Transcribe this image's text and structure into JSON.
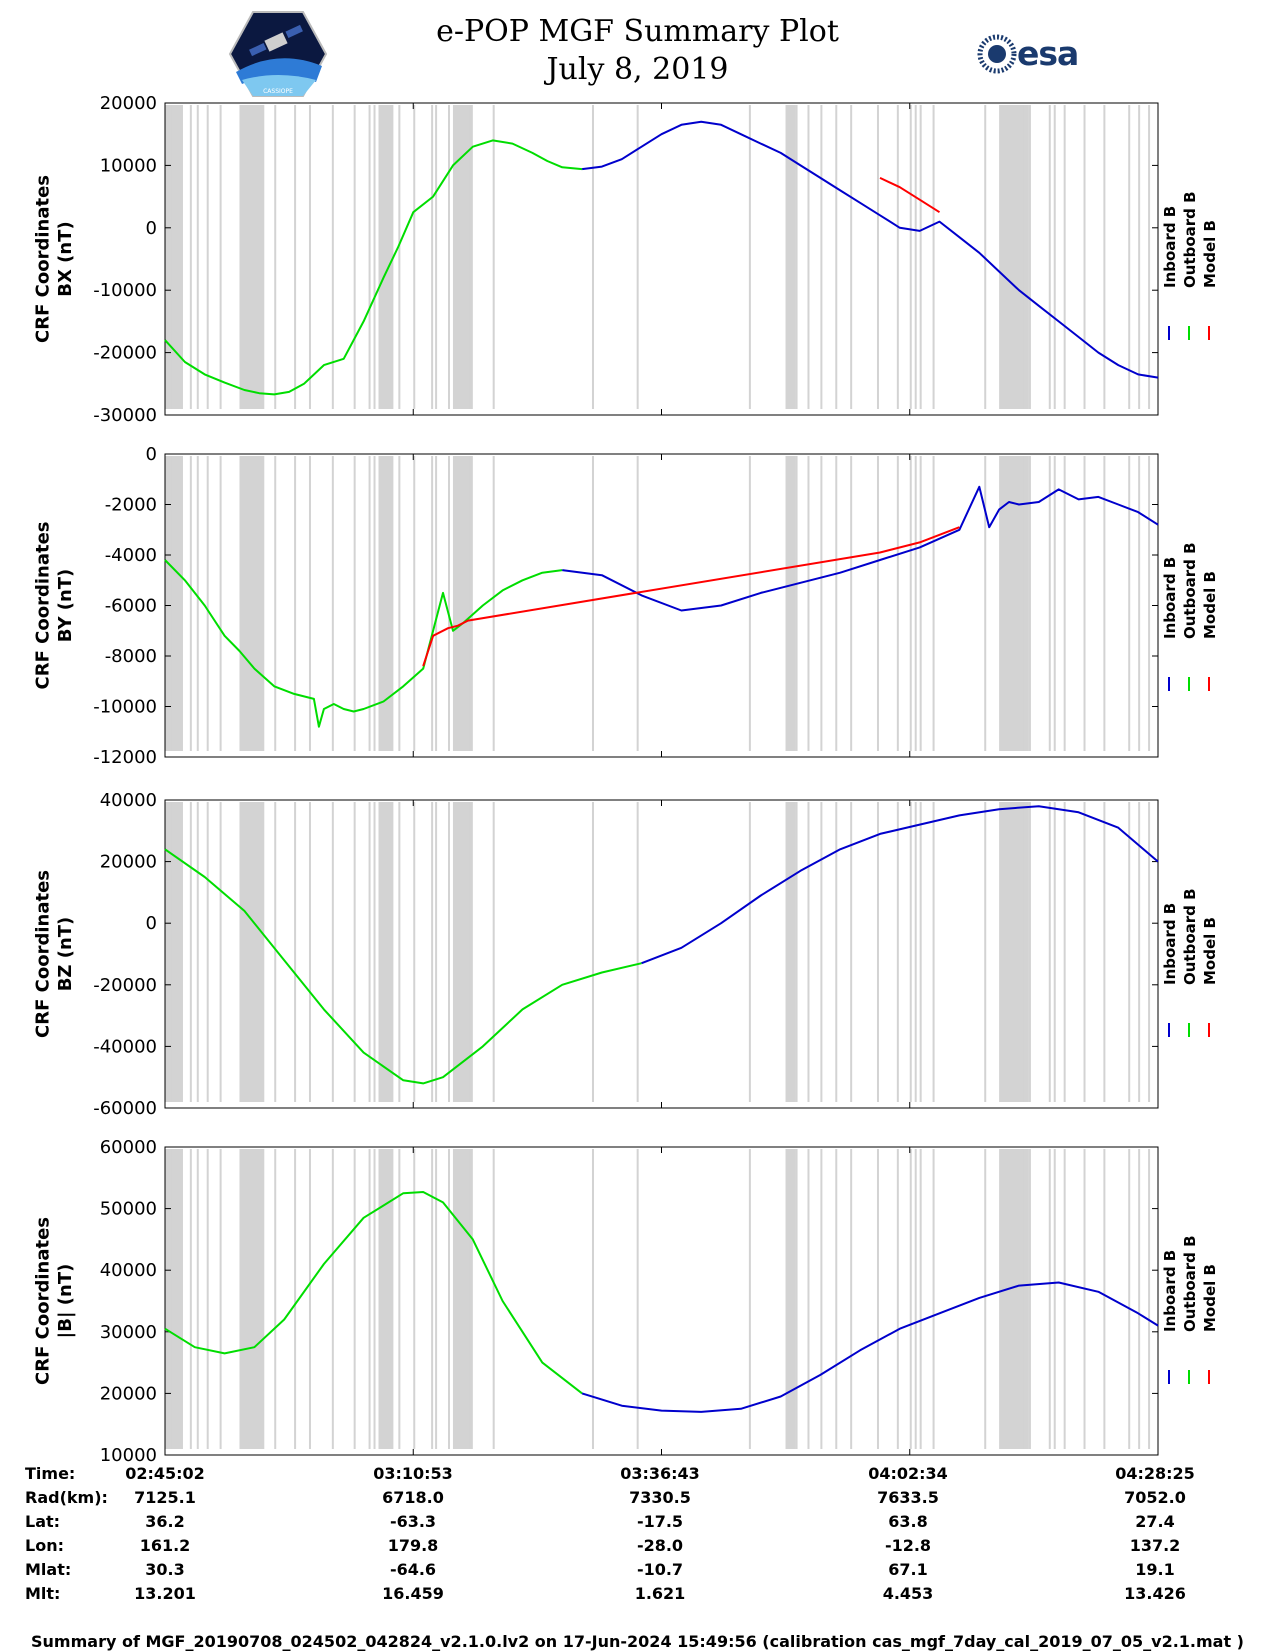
{
  "header": {
    "title_line1": "e-POP MGF Summary Plot",
    "title_line2": "July 8, 2019",
    "esa_logo_text": "esa"
  },
  "logos": {
    "left": "e-POP satellite mission logo",
    "left_caption": "CASSIOPE",
    "right": "esa"
  },
  "colors": {
    "inboard": "#0000cc",
    "outboard": "#00dd00",
    "model": "#ff0000",
    "shade": "#d3d3d3",
    "esa": "#1a3a6e"
  },
  "chart_data": [
    {
      "type": "line",
      "name": "BX",
      "ylabel_line1": "CRF Coordinates",
      "ylabel_line2": "BX (nT)",
      "ylim": [
        -30000,
        20000
      ],
      "yticks": [
        20000,
        10000,
        0,
        -10000,
        -20000,
        -30000
      ],
      "ytick_labels": [
        "20000",
        "10000",
        "0",
        "-10000",
        "-20000",
        "-30000"
      ],
      "series": [
        {
          "name": "Outboard B",
          "color_key": "outboard",
          "x": [
            0,
            2,
            4,
            6,
            8,
            9.5,
            11,
            12.5,
            14,
            16,
            18,
            20,
            22,
            23.5,
            25,
            27,
            29,
            31,
            33,
            35,
            37,
            38.5,
            40,
            42
          ],
          "y": [
            -18000,
            -21500,
            -23500,
            -24800,
            -26000,
            -26500,
            -26700,
            -26300,
            -25000,
            -22000,
            -21000,
            -15000,
            -8000,
            -3000,
            2500,
            5000,
            10000,
            13000,
            14000,
            13500,
            12000,
            10700,
            9700,
            9400
          ]
        },
        {
          "name": "Inboard B",
          "color_key": "inboard",
          "x": [
            42,
            44,
            46,
            48,
            50,
            52,
            54,
            56,
            58,
            60,
            62,
            64,
            66,
            68,
            70,
            72,
            74,
            76,
            78,
            80,
            82,
            84,
            86,
            88,
            90,
            92,
            94,
            96,
            98,
            100
          ],
          "y": [
            9400,
            9800,
            11000,
            13000,
            15000,
            16500,
            17000,
            16500,
            15000,
            13500,
            12000,
            10000,
            8000,
            6000,
            4000,
            2000,
            0,
            -500,
            1000,
            -1500,
            -4000,
            -7000,
            -10000,
            -12500,
            -15000,
            -17500,
            -20000,
            -22000,
            -23500,
            -24000
          ]
        },
        {
          "name": "Model B",
          "color_key": "model",
          "x": [
            72,
            74,
            76,
            78
          ],
          "y": [
            8000,
            6500,
            4500,
            2500
          ]
        }
      ]
    },
    {
      "type": "line",
      "name": "BY",
      "ylabel_line1": "CRF Coordinates",
      "ylabel_line2": "BY (nT)",
      "ylim": [
        -12000,
        0
      ],
      "yticks": [
        0,
        -2000,
        -4000,
        -6000,
        -8000,
        -10000,
        -12000
      ],
      "ytick_labels": [
        "0",
        "-2000",
        "-4000",
        "-6000",
        "-8000",
        "-10000",
        "-12000"
      ],
      "series": [
        {
          "name": "Outboard B",
          "color_key": "outboard",
          "x": [
            0,
            2,
            4,
            6,
            7.5,
            9,
            11,
            13,
            15,
            15.5,
            16,
            17,
            18,
            19,
            20,
            22,
            24,
            26,
            27,
            28,
            29,
            30,
            32,
            34,
            36,
            38,
            40
          ],
          "y": [
            -4200,
            -5000,
            -6000,
            -7200,
            -7800,
            -8500,
            -9200,
            -9500,
            -9700,
            -10800,
            -10100,
            -9900,
            -10100,
            -10200,
            -10100,
            -9800,
            -9200,
            -8500,
            -7000,
            -5500,
            -7000,
            -6700,
            -6000,
            -5400,
            -5000,
            -4700,
            -4600
          ]
        },
        {
          "name": "Inboard B",
          "color_key": "inboard",
          "x": [
            40,
            44,
            48,
            52,
            56,
            60,
            64,
            68,
            72,
            76,
            80,
            82,
            83,
            84,
            85,
            86,
            88,
            90,
            92,
            94,
            96,
            98,
            100
          ],
          "y": [
            -4600,
            -4800,
            -5600,
            -6200,
            -6000,
            -5500,
            -5100,
            -4700,
            -4200,
            -3700,
            -3000,
            -1300,
            -2900,
            -2200,
            -1900,
            -2000,
            -1900,
            -1400,
            -1800,
            -1700,
            -2000,
            -2300,
            -2800
          ]
        },
        {
          "name": "Model B",
          "color_key": "model",
          "x": [
            26,
            27,
            28.5,
            29.5,
            30.5,
            72,
            76,
            80
          ],
          "y": [
            -8400,
            -7200,
            -6900,
            -6800,
            -6600,
            -3900,
            -3500,
            -2900
          ]
        }
      ]
    },
    {
      "type": "line",
      "name": "BZ",
      "ylabel_line1": "CRF Coordinates",
      "ylabel_line2": "BZ (nT)",
      "ylim": [
        -60000,
        40000
      ],
      "yticks": [
        40000,
        20000,
        0,
        -20000,
        -40000,
        -60000
      ],
      "ytick_labels": [
        "40000",
        "20000",
        "0",
        "-20000",
        "-40000",
        "-60000"
      ],
      "series": [
        {
          "name": "Outboard B",
          "color_key": "outboard",
          "x": [
            0,
            4,
            8,
            12,
            16,
            20,
            24,
            26,
            28,
            32,
            36,
            40,
            44,
            48
          ],
          "y": [
            24000,
            15000,
            4000,
            -12000,
            -28000,
            -42000,
            -51000,
            -52000,
            -50000,
            -40000,
            -28000,
            -20000,
            -16000,
            -13000
          ]
        },
        {
          "name": "Inboard B",
          "color_key": "inboard",
          "x": [
            48,
            52,
            56,
            60,
            64,
            68,
            72,
            76,
            80,
            84,
            88,
            92,
            96,
            100
          ],
          "y": [
            -13000,
            -8000,
            0,
            9000,
            17000,
            24000,
            29000,
            32000,
            35000,
            37000,
            38000,
            36000,
            31000,
            20000
          ]
        },
        {
          "name": "Model B",
          "color_key": "model",
          "x": [],
          "y": []
        }
      ]
    },
    {
      "type": "line",
      "name": "|B|",
      "ylabel_line1": "CRF Coordinates",
      "ylabel_line2": "|B| (nT)",
      "ylim": [
        10000,
        60000
      ],
      "yticks": [
        60000,
        50000,
        40000,
        30000,
        20000,
        10000
      ],
      "ytick_labels": [
        "60000",
        "50000",
        "40000",
        "30000",
        "20000",
        "10000"
      ],
      "series": [
        {
          "name": "Outboard B",
          "color_key": "outboard",
          "x": [
            0,
            3,
            6,
            9,
            12,
            16,
            20,
            24,
            26,
            28,
            31,
            34,
            38,
            42
          ],
          "y": [
            30500,
            27500,
            26500,
            27500,
            32000,
            41000,
            48500,
            52500,
            52700,
            51000,
            45000,
            35000,
            25000,
            20000
          ]
        },
        {
          "name": "Inboard B",
          "color_key": "inboard",
          "x": [
            42,
            46,
            50,
            54,
            58,
            62,
            66,
            70,
            74,
            78,
            82,
            86,
            90,
            94,
            98,
            100
          ],
          "y": [
            20000,
            18000,
            17200,
            17000,
            17500,
            19500,
            23000,
            27000,
            30500,
            33000,
            35500,
            37500,
            38000,
            36500,
            33000,
            31000
          ]
        },
        {
          "name": "Model B",
          "color_key": "model",
          "x": [],
          "y": []
        }
      ]
    }
  ],
  "legend": [
    "Inboard B",
    "Outboard B",
    "Model B"
  ],
  "shading_x": [
    0,
    0.5,
    1,
    1.6,
    2.5,
    3.2,
    4.2,
    5.5,
    7.6,
    8.2,
    8.8,
    9.5,
    11,
    13,
    14.5,
    16.8,
    19,
    20.5,
    21,
    21.5,
    22.6,
    23.5,
    25,
    26.8,
    27.2,
    28.5,
    29,
    29.5,
    30.5,
    33,
    43,
    47.5,
    58.8,
    62.5,
    63.5,
    64.7,
    66,
    67.5,
    69,
    71.7,
    73.7,
    75,
    75.5,
    76,
    77.3,
    82.5,
    84.5,
    85,
    85.7,
    86.5,
    87,
    89,
    89.5,
    90.5,
    92.5,
    94.5,
    97,
    98,
    99
  ],
  "shading_bands": [
    [
      0,
      1.8
    ],
    [
      7.5,
      10
    ],
    [
      21.5,
      23
    ],
    [
      29,
      31
    ],
    [
      62.5,
      63.5
    ],
    [
      84,
      87
    ]
  ],
  "xaxis": {
    "labels": [
      "Time:",
      "Rad(km):",
      "Lat:",
      "Lon:",
      "Mlat:",
      "Mlt:"
    ],
    "columns": [
      {
        "time": "02:45:02",
        "rad": "7125.1",
        "lat": "36.2",
        "lon": "161.2",
        "mlat": "30.3",
        "mlt": "13.201"
      },
      {
        "time": "03:10:53",
        "rad": "6718.0",
        "lat": "-63.3",
        "lon": "179.8",
        "mlat": "-64.6",
        "mlt": "16.459"
      },
      {
        "time": "03:36:43",
        "rad": "7330.5",
        "lat": "-17.5",
        "lon": "-28.0",
        "mlat": "-10.7",
        "mlt": "1.621"
      },
      {
        "time": "04:02:34",
        "rad": "7633.5",
        "lat": "63.8",
        "lon": "-12.8",
        "mlat": "67.1",
        "mlt": "4.453"
      },
      {
        "time": "04:28:25",
        "rad": "7052.0",
        "lat": "27.4",
        "lon": "137.2",
        "mlat": "19.1",
        "mlt": "13.426"
      }
    ],
    "tick_positions": [
      0,
      25,
      50,
      75,
      100
    ]
  },
  "footer": "Summary of MGF_20190708_024502_042824_v2.1.0.lv2 on 17-Jun-2024 15:49:56 (calibration cas_mgf_7day_cal_2019_07_05_v2.1.mat )"
}
